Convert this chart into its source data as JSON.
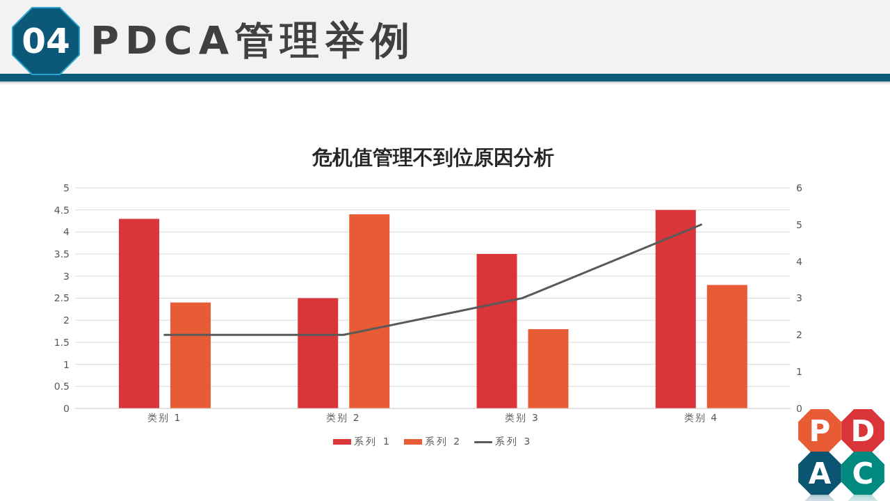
{
  "chart_data": {
    "type": "bar",
    "title": "危机值管理不到位原因分析",
    "annotations": [
      "04",
      "PDCA管理举例",
      "P",
      "D",
      "A",
      "C"
    ],
    "categories": [
      "类别 1",
      "类别 2",
      "类别 3",
      "类别 4"
    ],
    "series": [
      {
        "name": "系列 1",
        "color": "#da3538",
        "values": [
          4.3,
          2.5,
          3.5,
          4.5
        ]
      },
      {
        "name": "系列 2",
        "color": "#e85c35",
        "values": [
          2.4,
          4.4,
          1.8,
          2.8
        ]
      },
      {
        "name": "系列 3",
        "type": "line",
        "axis": "y2",
        "color": "#595959",
        "values": [
          2,
          2,
          3,
          5
        ]
      }
    ],
    "ylim": [
      0,
      5
    ],
    "yticks": [
      0,
      0.5,
      1,
      1.5,
      2,
      2.5,
      3,
      3.5,
      4,
      4.5,
      5
    ],
    "y2lim": [
      0,
      6
    ],
    "y2ticks": [
      0,
      1,
      2,
      3,
      4,
      5,
      6
    ],
    "grid": "y",
    "legend": "bottom",
    "marker": "none"
  }
}
